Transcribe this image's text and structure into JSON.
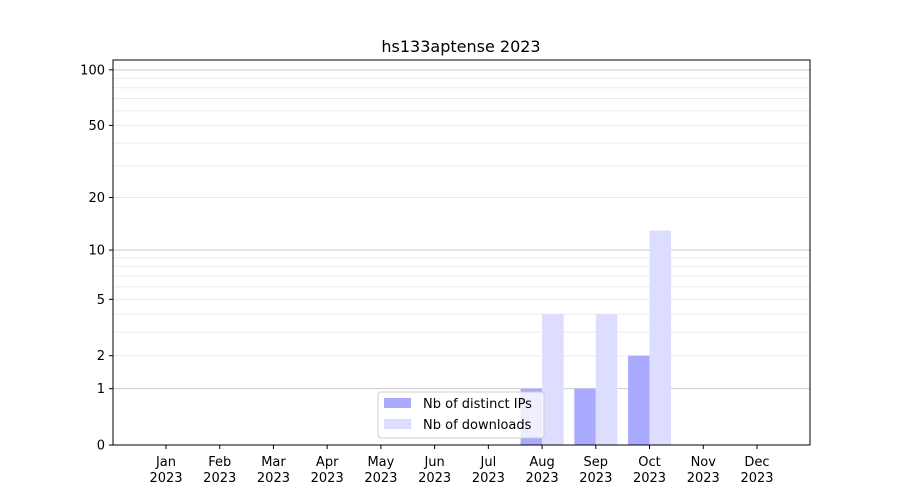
{
  "chart_data": {
    "type": "bar",
    "title": "hs133aptense 2023",
    "xlabel": "",
    "ylabel": "",
    "y_scale": "log(1+y)",
    "ylim": [
      0,
      113
    ],
    "yticks": [
      0,
      1,
      2,
      5,
      10,
      20,
      50,
      100
    ],
    "grid": true,
    "legend_position": "lower-center",
    "categories": [
      "Jan\n2023",
      "Feb\n2023",
      "Mar\n2023",
      "Apr\n2023",
      "May\n2023",
      "Jun\n2023",
      "Jul\n2023",
      "Aug\n2023",
      "Sep\n2023",
      "Oct\n2023",
      "Nov\n2023",
      "Dec\n2023"
    ],
    "series": [
      {
        "name": "Nb of distinct IPs",
        "color": "#aaaaff",
        "values": [
          0,
          0,
          0,
          0,
          0,
          0,
          0,
          1,
          1,
          2,
          0,
          0
        ]
      },
      {
        "name": "Nb of downloads",
        "color": "#ddddff",
        "values": [
          0,
          0,
          0,
          0,
          0,
          0,
          0,
          4,
          4,
          13,
          0,
          0
        ]
      }
    ]
  }
}
